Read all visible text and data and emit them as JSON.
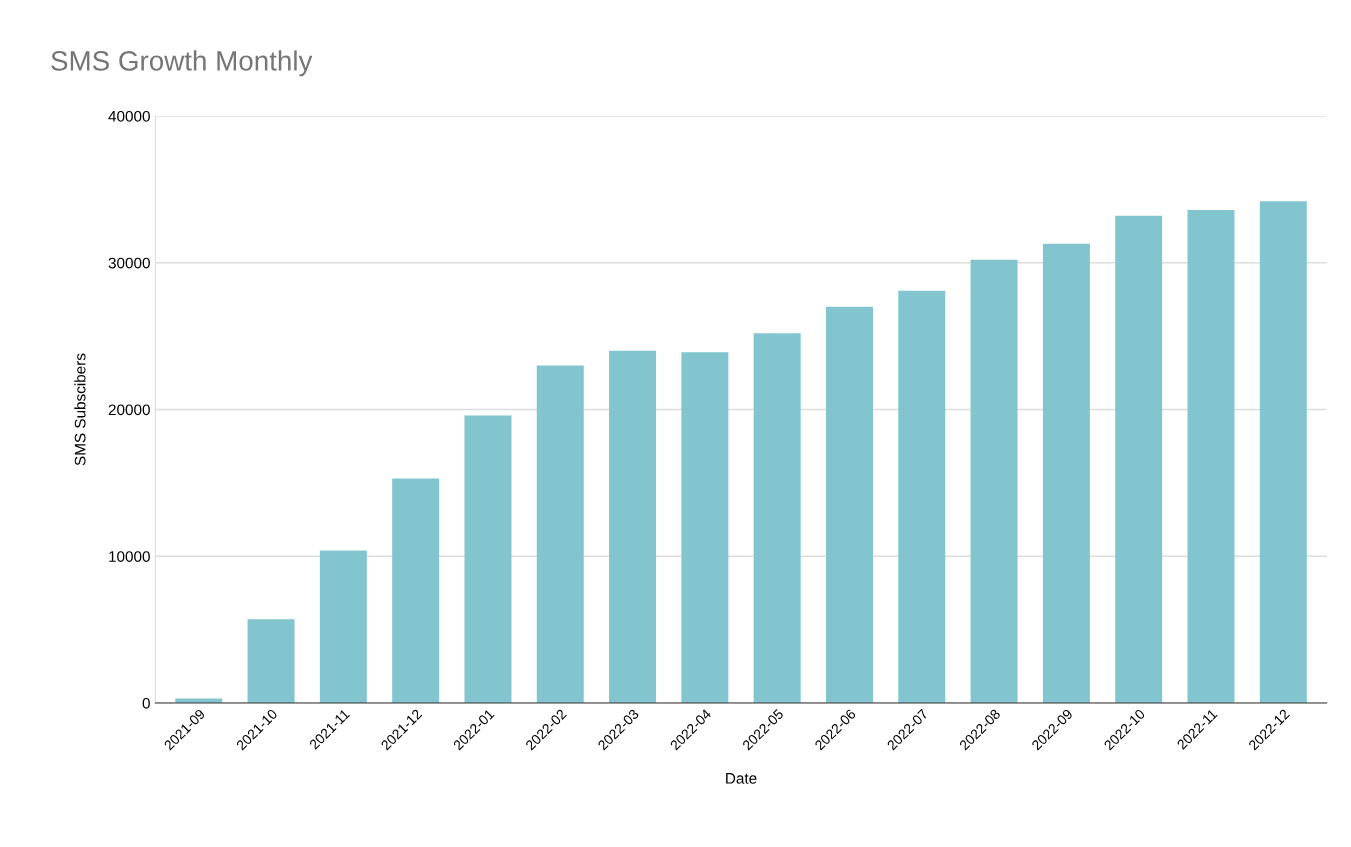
{
  "chart_data": {
    "type": "bar",
    "title": "SMS Growth Monthly",
    "xlabel": "Date",
    "ylabel": "SMS Subscibers",
    "categories": [
      "2021-09",
      "2021-10",
      "2021-11",
      "2021-12",
      "2022-01",
      "2022-02",
      "2022-03",
      "2022-04",
      "2022-05",
      "2022-06",
      "2022-07",
      "2022-08",
      "2022-09",
      "2022-10",
      "2022-11",
      "2022-12"
    ],
    "values": [
      300,
      5700,
      10400,
      15300,
      19600,
      23000,
      24000,
      23900,
      25200,
      27000,
      28100,
      30200,
      31300,
      33200,
      33600,
      34200
    ],
    "color": "#82c5cf",
    "ylim": [
      0,
      40000
    ],
    "yticks": [
      0,
      10000,
      20000,
      30000,
      40000
    ],
    "grid": "y"
  }
}
